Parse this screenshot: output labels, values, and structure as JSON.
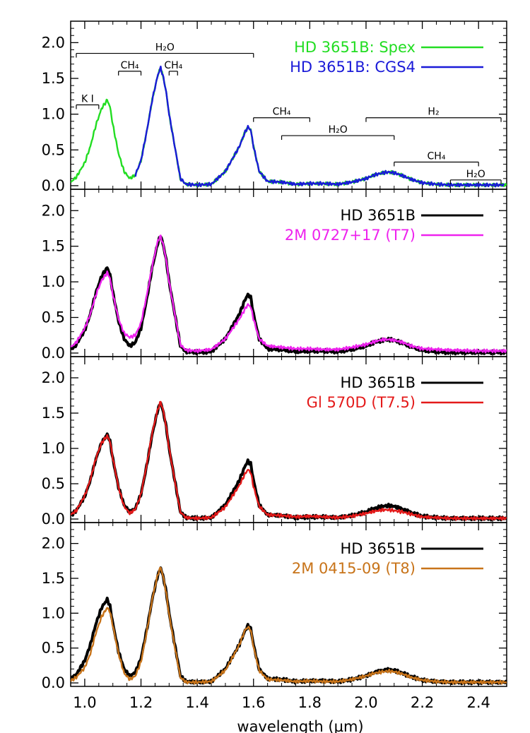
{
  "chart_data": {
    "type": "line",
    "x_axis": {
      "label": "wavelength (µm)",
      "range": [
        0.95,
        2.5
      ],
      "ticks": [
        "1.0",
        "1.2",
        "1.4",
        "1.6",
        "1.8",
        "2.0",
        "2.2",
        "2.4"
      ],
      "tick_values": [
        1.0,
        1.2,
        1.4,
        1.6,
        1.8,
        2.0,
        2.2,
        2.4
      ]
    },
    "panels": [
      {
        "ylim": [
          -0.05,
          2.3
        ],
        "yticks": [
          "0.0",
          "0.5",
          "1.0",
          "1.5",
          "2.0"
        ],
        "ytick_values": [
          0,
          0.5,
          1.0,
          1.5,
          2.0
        ],
        "series": [
          {
            "name": "HD 3651B: Spex",
            "color": "#22dd22",
            "profile": "hd3651b",
            "wave_start": 0.95,
            "wave_end": 2.5
          },
          {
            "name": "HD 3651B: CGS4",
            "color": "#1a1ad8",
            "profile": "hd3651b",
            "wave_start": 1.18,
            "wave_end": 2.49
          }
        ],
        "bands": [
          {
            "label": "H₂O",
            "x1": 0.97,
            "x2": 1.6,
            "y": 1.85
          },
          {
            "label": "CH₄",
            "x1": 1.12,
            "x2": 1.2,
            "y": 1.6
          },
          {
            "label": "CH₄",
            "x1": 1.3,
            "x2": 1.33,
            "y": 1.6
          },
          {
            "label": "K  I",
            "x1": 0.97,
            "x2": 1.05,
            "y": 1.13
          },
          {
            "label": "CH₄",
            "x1": 1.6,
            "x2": 1.8,
            "y": 0.95
          },
          {
            "label": "H₂O",
            "x1": 1.7,
            "x2": 2.1,
            "y": 0.7
          },
          {
            "label": "H₂",
            "x1": 2.0,
            "x2": 2.48,
            "y": 0.95
          },
          {
            "label": "CH₄",
            "x1": 2.1,
            "x2": 2.4,
            "y": 0.33
          },
          {
            "label": "H₂O",
            "x1": 2.3,
            "x2": 2.48,
            "y": 0.08
          }
        ]
      },
      {
        "ylim": [
          -0.05,
          2.3
        ],
        "yticks": [
          "0.0",
          "0.5",
          "1.0",
          "1.5",
          "2.0"
        ],
        "ytick_values": [
          0,
          0.5,
          1.0,
          1.5,
          2.0
        ],
        "series": [
          {
            "name": "HD 3651B",
            "color": "#000000",
            "profile": "hd3651b",
            "wave_start": 0.95,
            "wave_end": 2.5
          },
          {
            "name": "2M 0727+17 (T7)",
            "color": "#ee22ee",
            "profile": "t7",
            "wave_start": 0.95,
            "wave_end": 2.5
          }
        ]
      },
      {
        "ylim": [
          -0.05,
          2.3
        ],
        "yticks": [
          "0.0",
          "0.5",
          "1.0",
          "1.5",
          "2.0"
        ],
        "ytick_values": [
          0,
          0.5,
          1.0,
          1.5,
          2.0
        ],
        "series": [
          {
            "name": "HD 3651B",
            "color": "#000000",
            "profile": "hd3651b",
            "wave_start": 0.95,
            "wave_end": 2.5
          },
          {
            "name": "Gl 570D (T7.5)",
            "color": "#e41a1a",
            "profile": "t75",
            "wave_start": 0.95,
            "wave_end": 2.5
          }
        ]
      },
      {
        "ylim": [
          -0.05,
          2.3
        ],
        "yticks": [
          "0.0",
          "0.5",
          "1.0",
          "1.5",
          "2.0"
        ],
        "ytick_values": [
          0,
          0.5,
          1.0,
          1.5,
          2.0
        ],
        "series": [
          {
            "name": "HD 3651B",
            "color": "#000000",
            "profile": "hd3651b",
            "wave_start": 0.95,
            "wave_end": 2.5
          },
          {
            "name": "2M 0415-09 (T8)",
            "color": "#c8741a",
            "profile": "t8",
            "wave_start": 0.95,
            "wave_end": 2.5
          }
        ]
      }
    ],
    "profiles": {
      "hd3651b": {
        "w": [
          0.95,
          0.97,
          1.0,
          1.02,
          1.04,
          1.06,
          1.08,
          1.09,
          1.1,
          1.12,
          1.14,
          1.16,
          1.18,
          1.2,
          1.22,
          1.24,
          1.26,
          1.27,
          1.28,
          1.29,
          1.3,
          1.32,
          1.34,
          1.36,
          1.4,
          1.45,
          1.5,
          1.55,
          1.57,
          1.58,
          1.59,
          1.6,
          1.62,
          1.65,
          1.7,
          1.75,
          1.8,
          1.85,
          1.9,
          1.95,
          2.0,
          2.03,
          2.06,
          2.08,
          2.1,
          2.13,
          2.16,
          2.2,
          2.25,
          2.3,
          2.4,
          2.5
        ],
        "f": [
          0.05,
          0.12,
          0.32,
          0.55,
          0.85,
          1.08,
          1.2,
          1.1,
          0.85,
          0.45,
          0.2,
          0.1,
          0.15,
          0.35,
          0.75,
          1.2,
          1.55,
          1.65,
          1.5,
          1.3,
          1.0,
          0.55,
          0.1,
          0.02,
          0.01,
          0.02,
          0.2,
          0.55,
          0.75,
          0.82,
          0.78,
          0.55,
          0.2,
          0.06,
          0.05,
          0.02,
          0.03,
          0.03,
          0.02,
          0.05,
          0.1,
          0.15,
          0.18,
          0.19,
          0.18,
          0.14,
          0.09,
          0.04,
          0.02,
          0.01,
          0.01,
          0.01
        ]
      },
      "t7": {
        "w": [
          0.95,
          0.97,
          1.0,
          1.02,
          1.04,
          1.06,
          1.08,
          1.09,
          1.1,
          1.12,
          1.14,
          1.16,
          1.18,
          1.2,
          1.22,
          1.24,
          1.26,
          1.27,
          1.28,
          1.29,
          1.3,
          1.32,
          1.34,
          1.36,
          1.4,
          1.45,
          1.5,
          1.55,
          1.57,
          1.58,
          1.59,
          1.6,
          1.62,
          1.65,
          1.7,
          1.75,
          1.8,
          1.85,
          1.9,
          1.95,
          2.0,
          2.03,
          2.06,
          2.08,
          2.1,
          2.13,
          2.16,
          2.2,
          2.25,
          2.3,
          2.4,
          2.5
        ],
        "f": [
          0.08,
          0.15,
          0.35,
          0.55,
          0.82,
          1.02,
          1.13,
          1.05,
          0.82,
          0.48,
          0.28,
          0.22,
          0.25,
          0.42,
          0.8,
          1.22,
          1.58,
          1.64,
          1.5,
          1.3,
          1.0,
          0.55,
          0.12,
          0.04,
          0.03,
          0.05,
          0.2,
          0.48,
          0.62,
          0.68,
          0.65,
          0.48,
          0.2,
          0.1,
          0.08,
          0.06,
          0.06,
          0.05,
          0.05,
          0.08,
          0.12,
          0.16,
          0.19,
          0.19,
          0.18,
          0.15,
          0.1,
          0.06,
          0.05,
          0.04,
          0.03,
          0.03
        ]
      },
      "t75": {
        "w": [
          0.95,
          0.97,
          1.0,
          1.02,
          1.04,
          1.06,
          1.08,
          1.09,
          1.1,
          1.12,
          1.14,
          1.16,
          1.18,
          1.2,
          1.22,
          1.24,
          1.26,
          1.27,
          1.28,
          1.29,
          1.3,
          1.32,
          1.34,
          1.36,
          1.4,
          1.45,
          1.5,
          1.55,
          1.57,
          1.58,
          1.59,
          1.6,
          1.62,
          1.65,
          1.7,
          1.75,
          1.8,
          1.85,
          1.9,
          1.95,
          2.0,
          2.03,
          2.06,
          2.08,
          2.1,
          2.13,
          2.16,
          2.2,
          2.25,
          2.3,
          2.4,
          2.5
        ],
        "f": [
          0.06,
          0.12,
          0.33,
          0.56,
          0.86,
          1.08,
          1.18,
          1.1,
          0.86,
          0.45,
          0.18,
          0.08,
          0.14,
          0.35,
          0.76,
          1.22,
          1.56,
          1.66,
          1.52,
          1.3,
          1.0,
          0.55,
          0.1,
          0.02,
          0.01,
          0.02,
          0.17,
          0.48,
          0.64,
          0.7,
          0.66,
          0.46,
          0.18,
          0.06,
          0.05,
          0.03,
          0.04,
          0.03,
          0.02,
          0.04,
          0.08,
          0.11,
          0.13,
          0.13,
          0.12,
          0.1,
          0.07,
          0.03,
          0.02,
          0.01,
          0.01,
          0.01
        ]
      },
      "t8": {
        "w": [
          0.95,
          0.97,
          1.0,
          1.02,
          1.04,
          1.06,
          1.08,
          1.09,
          1.1,
          1.12,
          1.14,
          1.16,
          1.18,
          1.2,
          1.22,
          1.24,
          1.26,
          1.27,
          1.28,
          1.29,
          1.3,
          1.32,
          1.34,
          1.36,
          1.4,
          1.45,
          1.5,
          1.55,
          1.57,
          1.58,
          1.59,
          1.6,
          1.62,
          1.65,
          1.7,
          1.75,
          1.8,
          1.85,
          1.9,
          1.95,
          2.0,
          2.03,
          2.06,
          2.08,
          2.1,
          2.13,
          2.16,
          2.2,
          2.25,
          2.3,
          2.4,
          2.5
        ],
        "f": [
          0.03,
          0.08,
          0.22,
          0.42,
          0.72,
          0.95,
          1.08,
          1.02,
          0.82,
          0.42,
          0.14,
          0.05,
          0.1,
          0.3,
          0.72,
          1.2,
          1.56,
          1.66,
          1.5,
          1.28,
          0.98,
          0.52,
          0.08,
          0.01,
          0.01,
          0.02,
          0.18,
          0.55,
          0.76,
          0.8,
          0.76,
          0.52,
          0.18,
          0.05,
          0.04,
          0.02,
          0.03,
          0.02,
          0.02,
          0.05,
          0.1,
          0.14,
          0.16,
          0.17,
          0.16,
          0.13,
          0.08,
          0.04,
          0.02,
          0.01,
          0.01,
          0.01
        ]
      }
    }
  }
}
